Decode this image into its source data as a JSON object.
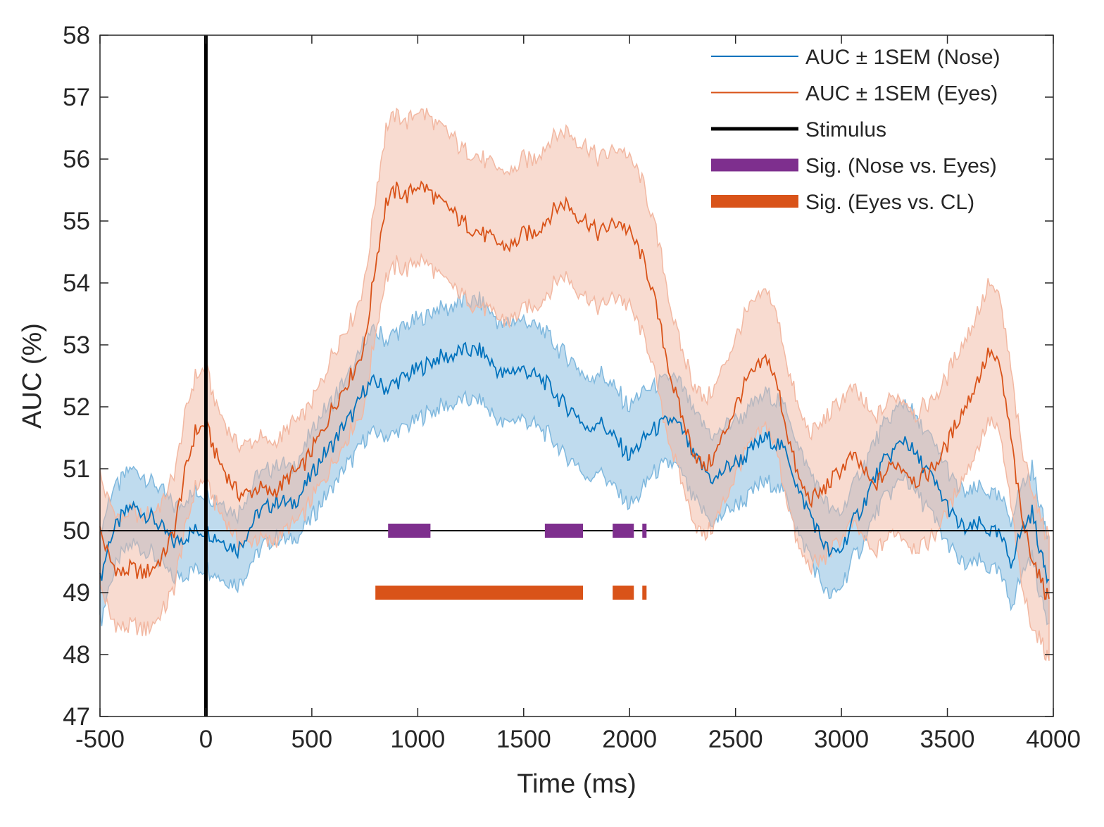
{
  "chart_data": {
    "type": "line",
    "title": "",
    "xlabel": "Time (ms)",
    "ylabel": "AUC (%)",
    "xlim": [
      -500,
      4000
    ],
    "ylim": [
      47,
      58
    ],
    "x_ticks": [
      -500,
      0,
      500,
      1000,
      1500,
      2000,
      2500,
      3000,
      3500,
      4000
    ],
    "x_tick_labels": [
      "-500",
      "0",
      "500",
      "1000",
      "1500",
      "2000",
      "2500",
      "3000",
      "3500",
      "4000"
    ],
    "y_ticks": [
      47,
      48,
      49,
      50,
      51,
      52,
      53,
      54,
      55,
      56,
      57,
      58
    ],
    "y_tick_labels": [
      "47",
      "48",
      "49",
      "50",
      "51",
      "52",
      "53",
      "54",
      "55",
      "56",
      "57",
      "58"
    ],
    "chance_level": 50,
    "series": [
      {
        "name": "AUC ± 1SEM (Nose)",
        "color": "#0072BD",
        "band_color": "#7FB8DE",
        "x": [
          -500,
          -450,
          -400,
          -350,
          -300,
          -250,
          -200,
          -150,
          -100,
          -50,
          0,
          50,
          100,
          150,
          200,
          250,
          300,
          350,
          400,
          450,
          500,
          550,
          600,
          650,
          700,
          750,
          800,
          850,
          900,
          950,
          1000,
          1050,
          1100,
          1150,
          1200,
          1250,
          1300,
          1350,
          1400,
          1450,
          1500,
          1550,
          1600,
          1650,
          1700,
          1750,
          1800,
          1850,
          1900,
          1950,
          2000,
          2050,
          2100,
          2150,
          2200,
          2250,
          2300,
          2350,
          2400,
          2450,
          2500,
          2550,
          2600,
          2650,
          2700,
          2750,
          2800,
          2850,
          2900,
          2950,
          3000,
          3050,
          3100,
          3150,
          3200,
          3250,
          3300,
          3350,
          3400,
          3450,
          3500,
          3550,
          3600,
          3650,
          3700,
          3750,
          3800,
          3850,
          3900,
          3950,
          3980
        ],
        "values": [
          49.2,
          49.9,
          50.2,
          50.4,
          50.3,
          50.2,
          50.0,
          49.8,
          49.9,
          50.0,
          50.0,
          49.9,
          49.8,
          49.7,
          50.0,
          50.3,
          50.4,
          50.5,
          50.4,
          50.6,
          50.9,
          51.2,
          51.4,
          51.7,
          51.9,
          52.3,
          52.4,
          52.3,
          52.4,
          52.5,
          52.6,
          52.7,
          52.8,
          52.8,
          52.9,
          52.9,
          52.9,
          52.7,
          52.5,
          52.6,
          52.6,
          52.5,
          52.4,
          52.2,
          52.0,
          51.9,
          51.6,
          51.8,
          51.6,
          51.4,
          51.2,
          51.4,
          51.6,
          51.7,
          51.8,
          51.6,
          51.2,
          51.0,
          50.8,
          51.0,
          51.1,
          51.2,
          51.4,
          51.5,
          51.4,
          51.2,
          50.6,
          50.3,
          49.9,
          49.6,
          49.7,
          50.1,
          50.4,
          50.8,
          51.1,
          51.3,
          51.5,
          51.2,
          51.0,
          50.7,
          50.4,
          50.1,
          50.0,
          50.1,
          50.0,
          49.9,
          49.5,
          50.0,
          50.3,
          49.5,
          49.2
        ],
        "sem": [
          0.7,
          0.7,
          0.6,
          0.6,
          0.6,
          0.6,
          0.6,
          0.6,
          0.6,
          0.6,
          0.6,
          0.6,
          0.6,
          0.6,
          0.6,
          0.6,
          0.6,
          0.6,
          0.6,
          0.6,
          0.7,
          0.7,
          0.7,
          0.7,
          0.7,
          0.8,
          0.8,
          0.8,
          0.8,
          0.8,
          0.8,
          0.8,
          0.8,
          0.8,
          0.8,
          0.8,
          0.8,
          0.8,
          0.8,
          0.8,
          0.8,
          0.8,
          0.8,
          0.8,
          0.8,
          0.8,
          0.8,
          0.8,
          0.8,
          0.8,
          0.8,
          0.8,
          0.7,
          0.7,
          0.7,
          0.7,
          0.7,
          0.7,
          0.7,
          0.7,
          0.7,
          0.7,
          0.7,
          0.7,
          0.7,
          0.7,
          0.7,
          0.7,
          0.7,
          0.7,
          0.6,
          0.6,
          0.6,
          0.6,
          0.6,
          0.6,
          0.6,
          0.6,
          0.6,
          0.6,
          0.6,
          0.6,
          0.6,
          0.6,
          0.6,
          0.6,
          0.7,
          0.7,
          0.7,
          0.7,
          0.7
        ]
      },
      {
        "name": "AUC ± 1SEM (Eyes)",
        "color": "#D95319",
        "band_color": "#F2B8A2",
        "x": [
          -500,
          -450,
          -400,
          -350,
          -300,
          -250,
          -200,
          -150,
          -100,
          -50,
          0,
          50,
          100,
          150,
          200,
          250,
          300,
          350,
          400,
          450,
          500,
          550,
          600,
          650,
          700,
          750,
          800,
          850,
          900,
          950,
          1000,
          1050,
          1100,
          1150,
          1200,
          1250,
          1300,
          1350,
          1400,
          1450,
          1500,
          1550,
          1600,
          1650,
          1700,
          1750,
          1800,
          1850,
          1900,
          1950,
          2000,
          2050,
          2100,
          2150,
          2200,
          2250,
          2300,
          2350,
          2400,
          2450,
          2500,
          2550,
          2600,
          2650,
          2700,
          2750,
          2800,
          2850,
          2900,
          2950,
          3000,
          3050,
          3100,
          3150,
          3200,
          3250,
          3300,
          3350,
          3400,
          3450,
          3500,
          3550,
          3600,
          3650,
          3700,
          3750,
          3800,
          3850,
          3900,
          3950,
          3980
        ],
        "values": [
          50.0,
          49.5,
          49.3,
          49.4,
          49.3,
          49.4,
          49.6,
          50.0,
          50.9,
          51.6,
          51.7,
          51.2,
          50.9,
          50.6,
          50.6,
          50.7,
          50.6,
          50.7,
          50.9,
          51.0,
          51.3,
          51.6,
          52.0,
          52.3,
          52.6,
          53.0,
          54.3,
          55.3,
          55.5,
          55.4,
          55.6,
          55.5,
          55.3,
          55.2,
          55.0,
          54.9,
          54.8,
          54.7,
          54.6,
          54.6,
          54.8,
          54.8,
          55.0,
          55.2,
          55.3,
          55.1,
          55.0,
          54.8,
          54.9,
          55.0,
          54.8,
          54.5,
          54.0,
          53.2,
          52.4,
          51.8,
          51.3,
          51.0,
          51.2,
          51.6,
          52.0,
          52.4,
          52.6,
          52.8,
          52.3,
          51.5,
          50.8,
          50.5,
          50.6,
          50.8,
          51.0,
          51.2,
          51.0,
          50.7,
          50.9,
          51.1,
          51.0,
          50.8,
          50.9,
          51.1,
          51.4,
          51.8,
          52.1,
          52.5,
          52.9,
          52.6,
          51.5,
          50.2,
          49.6,
          49.1,
          48.9
        ],
        "sem": [
          0.9,
          0.9,
          0.9,
          0.9,
          0.9,
          0.9,
          0.9,
          0.9,
          0.9,
          0.9,
          0.9,
          0.8,
          0.8,
          0.8,
          0.8,
          0.8,
          0.8,
          0.8,
          0.8,
          0.8,
          0.8,
          0.8,
          0.9,
          0.9,
          0.9,
          1.0,
          1.1,
          1.2,
          1.2,
          1.2,
          1.2,
          1.2,
          1.2,
          1.2,
          1.2,
          1.2,
          1.2,
          1.2,
          1.2,
          1.2,
          1.2,
          1.2,
          1.2,
          1.2,
          1.2,
          1.2,
          1.2,
          1.2,
          1.2,
          1.2,
          1.2,
          1.2,
          1.2,
          1.2,
          1.1,
          1.1,
          1.1,
          1.1,
          1.1,
          1.1,
          1.1,
          1.1,
          1.1,
          1.1,
          1.1,
          1.1,
          1.1,
          1.1,
          1.1,
          1.1,
          1.1,
          1.1,
          1.1,
          1.1,
          1.1,
          1.1,
          1.1,
          1.1,
          1.1,
          1.1,
          1.1,
          1.1,
          1.1,
          1.1,
          1.1,
          1.1,
          1.1,
          1.1,
          1.1,
          1.0,
          1.0
        ]
      }
    ],
    "stimulus": {
      "name": "Stimulus",
      "x": 0,
      "color": "#000000"
    },
    "significance": [
      {
        "name": "Sig. (Nose vs. Eyes)",
        "color": "#7E2F8E",
        "y": 50,
        "intervals": [
          [
            860,
            1060
          ],
          [
            1600,
            1780
          ],
          [
            1920,
            2020
          ],
          [
            2060,
            2080
          ]
        ]
      },
      {
        "name": "Sig. (Eyes vs. CL)",
        "color": "#D95319",
        "y": 49,
        "intervals": [
          [
            800,
            1780
          ],
          [
            1920,
            2020
          ],
          [
            2060,
            2080
          ]
        ]
      }
    ],
    "legend": {
      "position": "top-right",
      "entries": [
        "AUC ± 1SEM (Nose)",
        "AUC ± 1SEM (Eyes)",
        "Stimulus",
        "Sig. (Nose vs. Eyes)",
        "Sig. (Eyes vs. CL)"
      ]
    },
    "grid": false
  }
}
